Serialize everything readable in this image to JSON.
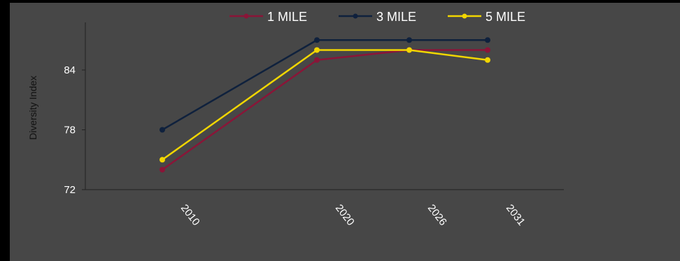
{
  "chart_data": {
    "type": "line",
    "ylabel": "Diversity Index",
    "xlabel": "",
    "categories": [
      "2010",
      "2020",
      "2026",
      "2031"
    ],
    "y_ticks": [
      "72",
      "78",
      "84"
    ],
    "ylim": [
      72,
      90
    ],
    "grid": false,
    "legend_position": "top",
    "series": [
      {
        "name": "1 MILE",
        "color": "#8a1538",
        "values": [
          74,
          85,
          86,
          86
        ]
      },
      {
        "name": "3 MILE",
        "color": "#0f213d",
        "values": [
          78,
          87,
          87,
          87
        ]
      },
      {
        "name": "5 MILE",
        "color": "#f2d600",
        "values": [
          75,
          86,
          86,
          85
        ]
      }
    ]
  }
}
